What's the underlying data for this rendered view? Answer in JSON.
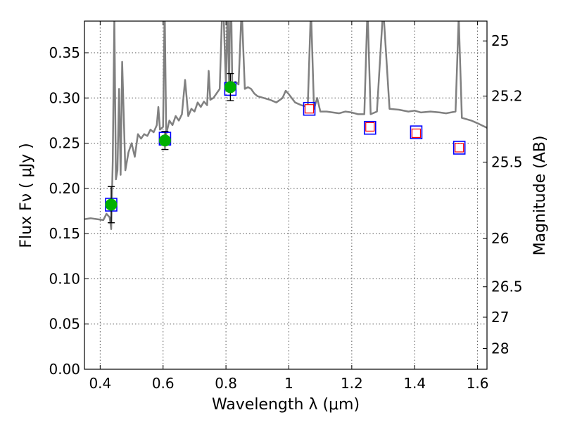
{
  "chart_data": {
    "type": "scatter",
    "xlabel": "Wavelength  λ (μm)",
    "ylabel": "Flux  Fν  ( μJy )",
    "ylabel_right": "Magnitude (AB)",
    "xlim": [
      0.35,
      1.63
    ],
    "ylim": [
      0.0,
      0.385
    ],
    "x_ticks": [
      0.4,
      0.6,
      0.8,
      1.0,
      1.2,
      1.4,
      1.6
    ],
    "x_tick_labels": [
      "0.4",
      "0.6",
      "0.8",
      "1",
      "1.2",
      "1.4",
      "1.6"
    ],
    "y_ticks": [
      0.0,
      0.05,
      0.1,
      0.15,
      0.2,
      0.25,
      0.3,
      0.35
    ],
    "y_tick_labels": [
      "0.00",
      "0.05",
      "0.10",
      "0.15",
      "0.20",
      "0.25",
      "0.30",
      "0.35"
    ],
    "mag_ticks": [
      25,
      25.2,
      25.5,
      26,
      26.5,
      27,
      28
    ],
    "mag_tick_labels": [
      "25",
      "25.2",
      "25.5",
      "26",
      "26.5",
      "27",
      "28"
    ],
    "grid": true,
    "series": [
      {
        "kind": "line",
        "color": "#808080",
        "x": [
          0.35,
          0.37,
          0.39,
          0.41,
          0.42,
          0.43,
          0.435,
          0.44,
          0.445,
          0.45,
          0.455,
          0.46,
          0.465,
          0.47,
          0.48,
          0.49,
          0.5,
          0.51,
          0.52,
          0.53,
          0.54,
          0.55,
          0.56,
          0.57,
          0.58,
          0.585,
          0.59,
          0.6,
          0.605,
          0.61,
          0.62,
          0.63,
          0.64,
          0.65,
          0.66,
          0.67,
          0.68,
          0.69,
          0.7,
          0.71,
          0.72,
          0.73,
          0.74,
          0.745,
          0.75,
          0.76,
          0.77,
          0.78,
          0.79,
          0.8,
          0.805,
          0.81,
          0.815,
          0.82,
          0.83,
          0.84,
          0.85,
          0.86,
          0.87,
          0.88,
          0.89,
          0.9,
          0.92,
          0.94,
          0.96,
          0.98,
          0.99,
          1.0,
          1.02,
          1.04,
          1.06,
          1.07,
          1.08,
          1.09,
          1.1,
          1.12,
          1.14,
          1.16,
          1.18,
          1.2,
          1.22,
          1.24,
          1.25,
          1.26,
          1.28,
          1.3,
          1.32,
          1.35,
          1.38,
          1.4,
          1.42,
          1.45,
          1.48,
          1.5,
          1.53,
          1.54,
          1.55,
          1.58,
          1.6,
          1.63
        ],
        "y": [
          0.166,
          0.167,
          0.166,
          0.165,
          0.172,
          0.168,
          0.155,
          0.23,
          0.39,
          0.21,
          0.22,
          0.31,
          0.215,
          0.34,
          0.22,
          0.24,
          0.25,
          0.235,
          0.26,
          0.255,
          0.26,
          0.258,
          0.265,
          0.262,
          0.27,
          0.29,
          0.265,
          0.268,
          0.4,
          0.26,
          0.275,
          0.27,
          0.28,
          0.275,
          0.282,
          0.32,
          0.28,
          0.288,
          0.285,
          0.295,
          0.29,
          0.296,
          0.292,
          0.33,
          0.298,
          0.3,
          0.305,
          0.31,
          0.42,
          0.312,
          0.4,
          0.315,
          0.45,
          0.316,
          0.318,
          0.315,
          0.4,
          0.31,
          0.312,
          0.31,
          0.305,
          0.302,
          0.3,
          0.298,
          0.295,
          0.3,
          0.308,
          0.304,
          0.295,
          0.292,
          0.29,
          0.4,
          0.288,
          0.3,
          0.285,
          0.285,
          0.284,
          0.283,
          0.285,
          0.284,
          0.282,
          0.282,
          0.4,
          0.282,
          0.285,
          0.4,
          0.288,
          0.287,
          0.285,
          0.286,
          0.284,
          0.285,
          0.284,
          0.283,
          0.285,
          0.39,
          0.278,
          0.275,
          0.272,
          0.267
        ]
      },
      {
        "kind": "points-measured",
        "x": [
          0.435,
          0.606,
          0.814
        ],
        "y": [
          0.182,
          0.253,
          0.312
        ],
        "yerr": [
          0.02,
          0.01,
          0.015
        ],
        "color": "#00b000"
      },
      {
        "kind": "boxes-model",
        "x": [
          0.435,
          0.606,
          0.814,
          1.065,
          1.258,
          1.405,
          1.542
        ],
        "y": [
          0.182,
          0.255,
          0.31,
          0.288,
          0.267,
          0.262,
          0.245
        ],
        "color": "#0000ff"
      },
      {
        "kind": "boxes-upper",
        "x": [
          1.065,
          1.258,
          1.405,
          1.542
        ],
        "y": [
          0.288,
          0.268,
          0.261,
          0.245
        ],
        "color": "#ff0000"
      }
    ]
  }
}
